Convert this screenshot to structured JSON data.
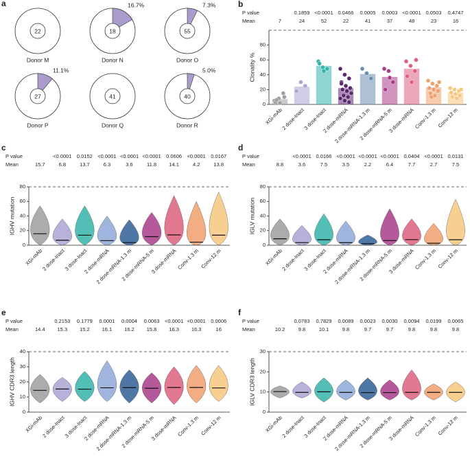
{
  "chart_data": [
    {
      "type": "pie",
      "panel": "a",
      "color": "#a99bcc",
      "categories": [
        "Donor M",
        "Donor N",
        "Donor O",
        "Donor P",
        "Donor Q",
        "Donor R"
      ],
      "counts": [
        22,
        18,
        55,
        27,
        41,
        40
      ],
      "values": [
        null,
        16.7,
        7.3,
        11.1,
        null,
        5.0
      ],
      "value_labels": [
        null,
        "16.7%",
        "7.3%",
        "11.1%",
        null,
        "5.0%"
      ]
    },
    {
      "type": "bar",
      "panel": "b",
      "ylabel": "Clonality %",
      "p_label": "P value",
      "mean_label": "Mean",
      "categories": [
        "XGi-mAb",
        "2 dose-Inact",
        "3 dose-Inact",
        "2 dose-mRNA",
        "2 dose-mRNA-1.3 m",
        "2 dose-mRNA-5 m",
        "3 dose-mRNA",
        "Conv-1.3 m",
        "Conv-12 m"
      ],
      "colors": [
        "#9e9e9e",
        "#aaa5d3",
        "#35b3a8",
        "#5b2870",
        "#6a8db0",
        "#a93c88",
        "#dd5f7d",
        "#f0a06c",
        "#f6c77e"
      ],
      "p_values": [
        null,
        "0.1859",
        "<0.0001",
        "0.0466",
        "0.0005",
        "0.0003",
        "<0.0001",
        "0.0503",
        "0.4747"
      ],
      "means": [
        7,
        24,
        52,
        22,
        41,
        37,
        48,
        23,
        16
      ],
      "points": [
        [
          5,
          8,
          15,
          3,
          2,
          10,
          6
        ],
        [
          18,
          30,
          25
        ],
        [
          58,
          50,
          48,
          55,
          45
        ],
        [
          48,
          40,
          35,
          30,
          25,
          22,
          20,
          18,
          15,
          12,
          10,
          8,
          5,
          3,
          28
        ],
        [
          48,
          42,
          35
        ],
        [
          48,
          45,
          30,
          20,
          36
        ],
        [
          58,
          52,
          45,
          38,
          30,
          60
        ],
        [
          32,
          28,
          25,
          22,
          20,
          18,
          15,
          12,
          30,
          10
        ],
        [
          22,
          20,
          18,
          16,
          14,
          12,
          10,
          8,
          20
        ]
      ],
      "ylim": [
        0,
        100
      ],
      "yticks": [
        0,
        20,
        40,
        60,
        80
      ]
    },
    {
      "type": "violin",
      "panel": "c",
      "ylabel": "IGHV mutation",
      "p_label": "P value",
      "mean_label": "Mean",
      "categories": [
        "XGi-mAb",
        "2 dose-Inact",
        "3 dose-Inact",
        "2 dose-mRNA",
        "2 dose-mRNA-1.3 m",
        "2 dose-mRNA-5 m",
        "3 dose-mRNA",
        "Conv-1.3 m",
        "Conv-12 m"
      ],
      "colors": [
        "#9e9e9e",
        "#aaa5d3",
        "#35b3a8",
        "#8fa8d8",
        "#2f5f95",
        "#a93c88",
        "#dd5f7d",
        "#f0a06c",
        "#f6c77e"
      ],
      "p_values": [
        null,
        "<0.0001",
        "0.0152",
        "<0.0001",
        "<0.0001",
        "<0.0001",
        "0.0606",
        "<0.0001",
        "0.0167"
      ],
      "means": [
        15.7,
        6.8,
        13.7,
        6.3,
        3.6,
        11.8,
        14.1,
        4.2,
        13.8
      ],
      "ranges": [
        [
          0,
          54
        ],
        [
          0,
          36
        ],
        [
          0,
          54
        ],
        [
          0,
          40
        ],
        [
          0,
          35
        ],
        [
          0,
          45
        ],
        [
          0,
          68
        ],
        [
          0,
          60
        ],
        [
          0,
          73
        ]
      ],
      "ylim": [
        0,
        80
      ],
      "yticks": [
        0,
        20,
        40,
        60,
        80
      ]
    },
    {
      "type": "violin",
      "panel": "d",
      "ylabel": "IGLV mutation",
      "p_label": "P value",
      "mean_label": "Mean",
      "categories": [
        "XGi-mAb",
        "2 dose-Inact",
        "3 dose-Inact",
        "2 dose-mRNA",
        "2 dose-mRNA-1.3 m",
        "2 dose-mRNA-5 m",
        "3 dose-mRNA",
        "Conv-1.3 m",
        "Conv-12 m"
      ],
      "colors": [
        "#9e9e9e",
        "#aaa5d3",
        "#35b3a8",
        "#8fa8d8",
        "#2f5f95",
        "#a93c88",
        "#dd5f7d",
        "#f0a06c",
        "#f6c77e"
      ],
      "p_values": [
        null,
        "<0.0001",
        "0.0166",
        "<0.0001",
        "<0.0001",
        "<0.0001",
        "0.0404",
        "<0.0001",
        "0.0131"
      ],
      "means": [
        8.8,
        3.6,
        7.5,
        3.5,
        2.2,
        6.4,
        7.7,
        2.7,
        7.5
      ],
      "ranges": [
        [
          0,
          36
        ],
        [
          0,
          27
        ],
        [
          0,
          43
        ],
        [
          0,
          33
        ],
        [
          0,
          14
        ],
        [
          0,
          50
        ],
        [
          0,
          36
        ],
        [
          0,
          30
        ],
        [
          0,
          63
        ]
      ],
      "ylim": [
        0,
        80
      ],
      "yticks": [
        0,
        20,
        40,
        60,
        80
      ]
    },
    {
      "type": "violin",
      "panel": "e",
      "ylabel": "IGHV CDR3 length",
      "p_label": "P value",
      "mean_label": "Mean",
      "categories": [
        "XGi-mAb",
        "2 dose-Inact",
        "3 dose-Inact",
        "2 dose-mRNA",
        "2 dose-mRNA-1.3 m",
        "2 dose-mRNA-5 m",
        "3 dose-mRNA",
        "Conv-1.3 m",
        "Conv-12 m"
      ],
      "colors": [
        "#9e9e9e",
        "#aaa5d3",
        "#35b3a8",
        "#8fa8d8",
        "#2f5f95",
        "#a93c88",
        "#dd5f7d",
        "#f0a06c",
        "#f6c77e"
      ],
      "p_values": [
        null,
        "0.2153",
        "0.1779",
        "0.0001",
        "0.0004",
        "0.0063",
        "<0.0001",
        "<0.0001",
        "0.0006"
      ],
      "means": [
        14.4,
        15.3,
        15.2,
        16.1,
        16.2,
        15.8,
        16.3,
        16.3,
        16.0
      ],
      "ranges": [
        [
          6,
          25
        ],
        [
          7,
          23
        ],
        [
          7,
          27
        ],
        [
          7,
          34
        ],
        [
          6,
          28
        ],
        [
          6,
          26
        ],
        [
          5,
          30
        ],
        [
          6,
          31
        ],
        [
          7,
          31
        ]
      ],
      "ylim": [
        0,
        40
      ],
      "yticks": [
        0,
        10,
        20,
        30,
        40
      ]
    },
    {
      "type": "violin",
      "panel": "f",
      "ylabel": "IGLV CDR3 length",
      "p_label": "P value",
      "mean_label": "Mean",
      "categories": [
        "XGi-mAb",
        "2 dose-Inact",
        "3 dose-Inact",
        "2 dose-mRNA",
        "2 dose-mRNA-1.3 m",
        "2 dose-mRNA-5 m",
        "3 dose-mRNA",
        "Conv-1.3 m",
        "Conv-12 m"
      ],
      "colors": [
        "#9e9e9e",
        "#aaa5d3",
        "#35b3a8",
        "#8fa8d8",
        "#2f5f95",
        "#a93c88",
        "#dd5f7d",
        "#f0a06c",
        "#f6c77e"
      ],
      "p_values": [
        null,
        "0.0783",
        "0.7829",
        "0.0089",
        "0.0023",
        "0.0030",
        "0.0094",
        "0.0199",
        "0.0065"
      ],
      "means": [
        10.2,
        9.8,
        10.1,
        9.8,
        9.7,
        9.7,
        9.8,
        9.8,
        9.8
      ],
      "ranges": [
        [
          7,
          13
        ],
        [
          7,
          15
        ],
        [
          5,
          17
        ],
        [
          6,
          16
        ],
        [
          6,
          17
        ],
        [
          6,
          16
        ],
        [
          6,
          21
        ],
        [
          6,
          14
        ],
        [
          5,
          15
        ]
      ],
      "ylim": [
        0,
        30
      ],
      "yticks": [
        0,
        10,
        20,
        30
      ]
    }
  ]
}
